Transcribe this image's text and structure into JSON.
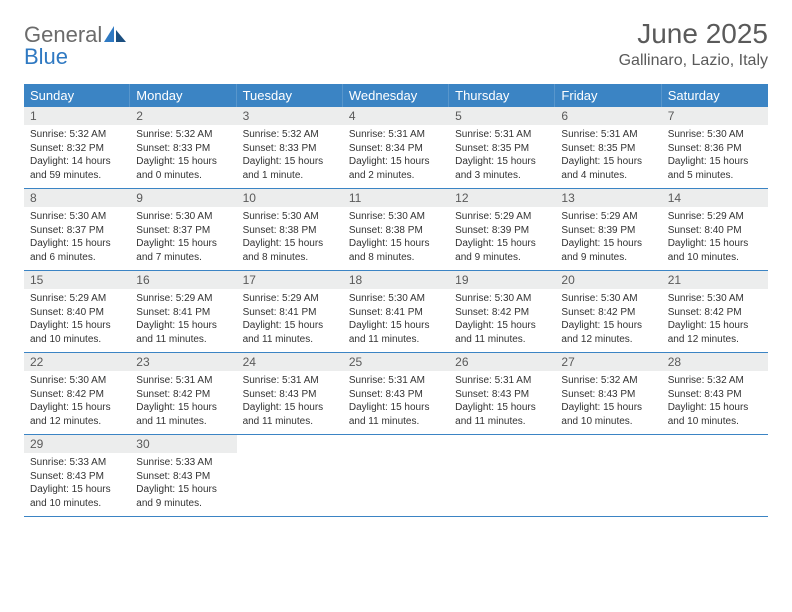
{
  "logo": {
    "general": "General",
    "blue": "Blue"
  },
  "title": "June 2025",
  "location": "Gallinaro, Lazio, Italy",
  "header_bg": "#3b84c4",
  "weekdays": [
    "Sunday",
    "Monday",
    "Tuesday",
    "Wednesday",
    "Thursday",
    "Friday",
    "Saturday"
  ],
  "weeks": [
    [
      {
        "num": "1",
        "sunrise": "Sunrise: 5:32 AM",
        "sunset": "Sunset: 8:32 PM",
        "day1": "Daylight: 14 hours",
        "day2": "and 59 minutes."
      },
      {
        "num": "2",
        "sunrise": "Sunrise: 5:32 AM",
        "sunset": "Sunset: 8:33 PM",
        "day1": "Daylight: 15 hours",
        "day2": "and 0 minutes."
      },
      {
        "num": "3",
        "sunrise": "Sunrise: 5:32 AM",
        "sunset": "Sunset: 8:33 PM",
        "day1": "Daylight: 15 hours",
        "day2": "and 1 minute."
      },
      {
        "num": "4",
        "sunrise": "Sunrise: 5:31 AM",
        "sunset": "Sunset: 8:34 PM",
        "day1": "Daylight: 15 hours",
        "day2": "and 2 minutes."
      },
      {
        "num": "5",
        "sunrise": "Sunrise: 5:31 AM",
        "sunset": "Sunset: 8:35 PM",
        "day1": "Daylight: 15 hours",
        "day2": "and 3 minutes."
      },
      {
        "num": "6",
        "sunrise": "Sunrise: 5:31 AM",
        "sunset": "Sunset: 8:35 PM",
        "day1": "Daylight: 15 hours",
        "day2": "and 4 minutes."
      },
      {
        "num": "7",
        "sunrise": "Sunrise: 5:30 AM",
        "sunset": "Sunset: 8:36 PM",
        "day1": "Daylight: 15 hours",
        "day2": "and 5 minutes."
      }
    ],
    [
      {
        "num": "8",
        "sunrise": "Sunrise: 5:30 AM",
        "sunset": "Sunset: 8:37 PM",
        "day1": "Daylight: 15 hours",
        "day2": "and 6 minutes."
      },
      {
        "num": "9",
        "sunrise": "Sunrise: 5:30 AM",
        "sunset": "Sunset: 8:37 PM",
        "day1": "Daylight: 15 hours",
        "day2": "and 7 minutes."
      },
      {
        "num": "10",
        "sunrise": "Sunrise: 5:30 AM",
        "sunset": "Sunset: 8:38 PM",
        "day1": "Daylight: 15 hours",
        "day2": "and 8 minutes."
      },
      {
        "num": "11",
        "sunrise": "Sunrise: 5:30 AM",
        "sunset": "Sunset: 8:38 PM",
        "day1": "Daylight: 15 hours",
        "day2": "and 8 minutes."
      },
      {
        "num": "12",
        "sunrise": "Sunrise: 5:29 AM",
        "sunset": "Sunset: 8:39 PM",
        "day1": "Daylight: 15 hours",
        "day2": "and 9 minutes."
      },
      {
        "num": "13",
        "sunrise": "Sunrise: 5:29 AM",
        "sunset": "Sunset: 8:39 PM",
        "day1": "Daylight: 15 hours",
        "day2": "and 9 minutes."
      },
      {
        "num": "14",
        "sunrise": "Sunrise: 5:29 AM",
        "sunset": "Sunset: 8:40 PM",
        "day1": "Daylight: 15 hours",
        "day2": "and 10 minutes."
      }
    ],
    [
      {
        "num": "15",
        "sunrise": "Sunrise: 5:29 AM",
        "sunset": "Sunset: 8:40 PM",
        "day1": "Daylight: 15 hours",
        "day2": "and 10 minutes."
      },
      {
        "num": "16",
        "sunrise": "Sunrise: 5:29 AM",
        "sunset": "Sunset: 8:41 PM",
        "day1": "Daylight: 15 hours",
        "day2": "and 11 minutes."
      },
      {
        "num": "17",
        "sunrise": "Sunrise: 5:29 AM",
        "sunset": "Sunset: 8:41 PM",
        "day1": "Daylight: 15 hours",
        "day2": "and 11 minutes."
      },
      {
        "num": "18",
        "sunrise": "Sunrise: 5:30 AM",
        "sunset": "Sunset: 8:41 PM",
        "day1": "Daylight: 15 hours",
        "day2": "and 11 minutes."
      },
      {
        "num": "19",
        "sunrise": "Sunrise: 5:30 AM",
        "sunset": "Sunset: 8:42 PM",
        "day1": "Daylight: 15 hours",
        "day2": "and 11 minutes."
      },
      {
        "num": "20",
        "sunrise": "Sunrise: 5:30 AM",
        "sunset": "Sunset: 8:42 PM",
        "day1": "Daylight: 15 hours",
        "day2": "and 12 minutes."
      },
      {
        "num": "21",
        "sunrise": "Sunrise: 5:30 AM",
        "sunset": "Sunset: 8:42 PM",
        "day1": "Daylight: 15 hours",
        "day2": "and 12 minutes."
      }
    ],
    [
      {
        "num": "22",
        "sunrise": "Sunrise: 5:30 AM",
        "sunset": "Sunset: 8:42 PM",
        "day1": "Daylight: 15 hours",
        "day2": "and 12 minutes."
      },
      {
        "num": "23",
        "sunrise": "Sunrise: 5:31 AM",
        "sunset": "Sunset: 8:42 PM",
        "day1": "Daylight: 15 hours",
        "day2": "and 11 minutes."
      },
      {
        "num": "24",
        "sunrise": "Sunrise: 5:31 AM",
        "sunset": "Sunset: 8:43 PM",
        "day1": "Daylight: 15 hours",
        "day2": "and 11 minutes."
      },
      {
        "num": "25",
        "sunrise": "Sunrise: 5:31 AM",
        "sunset": "Sunset: 8:43 PM",
        "day1": "Daylight: 15 hours",
        "day2": "and 11 minutes."
      },
      {
        "num": "26",
        "sunrise": "Sunrise: 5:31 AM",
        "sunset": "Sunset: 8:43 PM",
        "day1": "Daylight: 15 hours",
        "day2": "and 11 minutes."
      },
      {
        "num": "27",
        "sunrise": "Sunrise: 5:32 AM",
        "sunset": "Sunset: 8:43 PM",
        "day1": "Daylight: 15 hours",
        "day2": "and 10 minutes."
      },
      {
        "num": "28",
        "sunrise": "Sunrise: 5:32 AM",
        "sunset": "Sunset: 8:43 PM",
        "day1": "Daylight: 15 hours",
        "day2": "and 10 minutes."
      }
    ],
    [
      {
        "num": "29",
        "sunrise": "Sunrise: 5:33 AM",
        "sunset": "Sunset: 8:43 PM",
        "day1": "Daylight: 15 hours",
        "day2": "and 10 minutes."
      },
      {
        "num": "30",
        "sunrise": "Sunrise: 5:33 AM",
        "sunset": "Sunset: 8:43 PM",
        "day1": "Daylight: 15 hours",
        "day2": "and 9 minutes."
      },
      {
        "empty": true
      },
      {
        "empty": true
      },
      {
        "empty": true
      },
      {
        "empty": true
      },
      {
        "empty": true
      }
    ]
  ]
}
